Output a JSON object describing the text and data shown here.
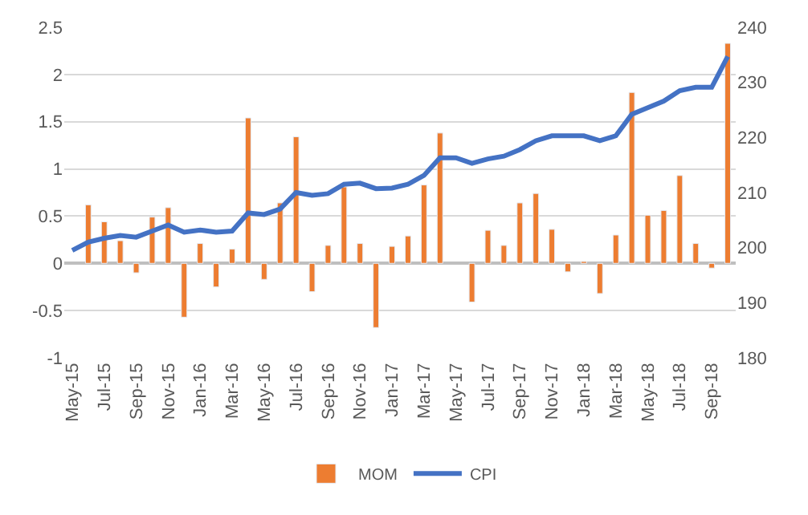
{
  "chart_data": {
    "type": "bar",
    "categories": [
      "May-15",
      null,
      "Jul-15",
      null,
      "Sep-15",
      null,
      "Nov-15",
      null,
      "Jan-16",
      null,
      "Mar-16",
      null,
      "May-16",
      null,
      "Jul-16",
      null,
      "Sep-16",
      null,
      "Nov-16",
      null,
      "Jan-17",
      null,
      "Mar-17",
      null,
      "May-17",
      null,
      "Jul-17",
      null,
      "Sep-17",
      null,
      "Nov-17",
      null,
      "Jan-18",
      null,
      "Mar-18",
      null,
      "May-18",
      null,
      "Jul-18",
      null,
      "Sep-18",
      null
    ],
    "series": [
      {
        "name": "MOM",
        "color": "#ed7d31",
        "values": [
          null,
          0.62,
          0.44,
          0.24,
          -0.1,
          0.49,
          0.59,
          -0.57,
          0.21,
          -0.25,
          0.15,
          1.54,
          -0.17,
          0.64,
          1.34,
          -0.3,
          0.19,
          0.81,
          0.21,
          -0.68,
          0.18,
          0.29,
          0.83,
          1.38,
          null,
          -0.41,
          0.35,
          0.19,
          0.64,
          0.74,
          0.36,
          -0.09,
          0.02,
          -0.32,
          0.3,
          1.81,
          0.51,
          0.56,
          0.93,
          0.21,
          -0.05,
          2.33
        ]
      },
      {
        "name": "CPI",
        "type": "line",
        "axis": "y2",
        "color": "#4472c4",
        "values": [
          199.5,
          201.0,
          201.7,
          202.2,
          201.9,
          203.0,
          204.1,
          202.8,
          203.2,
          202.8,
          203.0,
          206.3,
          206.0,
          207.0,
          210.0,
          209.5,
          209.8,
          211.5,
          211.7,
          210.7,
          210.8,
          211.5,
          213.1,
          216.3,
          216.3,
          215.3,
          216.1,
          216.6,
          217.8,
          219.4,
          220.3,
          220.3,
          220.3,
          219.4,
          220.3,
          224.2,
          225.4,
          226.6,
          228.5,
          229.1,
          229.1,
          234.7
        ]
      }
    ],
    "ylim": [
      -1,
      2.5
    ],
    "yticks": [
      -1,
      -0.5,
      0,
      0.5,
      1,
      1.5,
      2,
      2.5
    ],
    "y2lim": [
      180,
      240
    ],
    "y2ticks": [
      180,
      190,
      200,
      210,
      220,
      230,
      240
    ],
    "grid": "y",
    "legend": "bottom",
    "marker": "none",
    "line_style": "solid"
  }
}
